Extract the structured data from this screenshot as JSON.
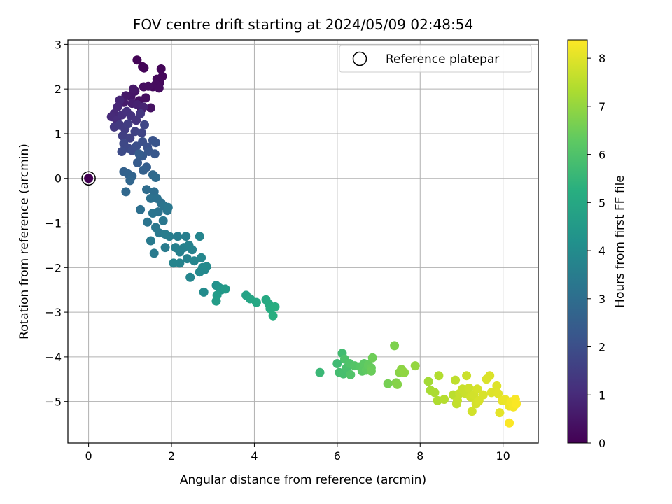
{
  "chart_data": {
    "type": "scatter",
    "title": "FOV centre drift starting at 2024/05/09 02:48:54",
    "xlabel": "Angular distance from reference (arcmin)",
    "ylabel": "Rotation from reference (arcmin)",
    "xlim": [
      -0.5,
      10.85
    ],
    "ylim": [
      -5.93,
      3.1
    ],
    "xticks": [
      0,
      2,
      4,
      6,
      8,
      10
    ],
    "yticks": [
      -5,
      -4,
      -3,
      -2,
      -1,
      0,
      1,
      2,
      3
    ],
    "grid": true,
    "legend": {
      "position": "top-right",
      "entries": [
        "Reference platepar"
      ]
    },
    "colorbar": {
      "label": "Hours from first FF file",
      "colormap": "viridis",
      "range": [
        0,
        8.38
      ],
      "ticks": [
        0,
        1,
        2,
        3,
        4,
        5,
        6,
        7,
        8
      ]
    },
    "reference_point": {
      "x": 0,
      "y": 0,
      "c": 0
    },
    "points": [
      [
        1.17,
        2.65,
        0.06
      ],
      [
        1.3,
        2.5,
        0.08
      ],
      [
        1.34,
        2.47,
        0.1
      ],
      [
        1.75,
        2.45,
        0.12
      ],
      [
        1.78,
        2.28,
        0.15
      ],
      [
        1.65,
        2.22,
        0.18
      ],
      [
        1.72,
        2.14,
        0.2
      ],
      [
        1.55,
        2.05,
        0.22
      ],
      [
        1.62,
        2.1,
        0.25
      ],
      [
        1.7,
        2.02,
        0.27
      ],
      [
        1.33,
        2.05,
        0.29
      ],
      [
        1.44,
        2.06,
        0.3
      ],
      [
        1.38,
        1.8,
        0.33
      ],
      [
        1.22,
        1.74,
        0.35
      ],
      [
        1.28,
        1.55,
        0.38
      ],
      [
        1.5,
        1.58,
        0.4
      ],
      [
        1.12,
        1.95,
        0.45
      ],
      [
        1.02,
        1.83,
        0.5
      ],
      [
        1.08,
        2.0,
        0.55
      ],
      [
        0.9,
        1.85,
        0.6
      ],
      [
        0.85,
        1.7,
        0.65
      ],
      [
        1.05,
        1.68,
        0.7
      ],
      [
        1.18,
        1.65,
        0.75
      ],
      [
        1.32,
        1.6,
        0.8
      ],
      [
        0.75,
        1.75,
        0.85
      ],
      [
        0.7,
        1.6,
        0.9
      ],
      [
        0.62,
        1.45,
        0.95
      ],
      [
        0.55,
        1.38,
        1.0
      ],
      [
        0.68,
        1.3,
        1.05
      ],
      [
        0.8,
        1.42,
        1.1
      ],
      [
        0.92,
        1.5,
        1.15
      ],
      [
        1.02,
        1.4,
        1.2
      ],
      [
        1.15,
        1.3,
        1.25
      ],
      [
        1.25,
        1.45,
        1.3
      ],
      [
        0.62,
        1.15,
        1.35
      ],
      [
        0.75,
        1.2,
        1.4
      ],
      [
        0.88,
        1.1,
        1.45
      ],
      [
        0.95,
        1.22,
        1.5
      ],
      [
        0.82,
        0.95,
        1.55
      ],
      [
        1.0,
        0.9,
        1.6
      ],
      [
        1.12,
        1.05,
        1.65
      ],
      [
        1.28,
        1.02,
        1.7
      ],
      [
        1.35,
        1.2,
        1.75
      ],
      [
        0.85,
        0.78,
        1.8
      ],
      [
        0.95,
        0.68,
        1.85
      ],
      [
        0.8,
        0.6,
        1.9
      ],
      [
        1.05,
        0.62,
        1.95
      ],
      [
        1.15,
        0.72,
        2.0
      ],
      [
        1.3,
        0.82,
        2.05
      ],
      [
        1.42,
        0.7,
        2.1
      ],
      [
        1.55,
        0.85,
        2.15
      ],
      [
        1.62,
        0.8,
        2.2
      ],
      [
        1.45,
        0.6,
        2.25
      ],
      [
        1.6,
        0.55,
        2.3
      ],
      [
        1.3,
        0.5,
        2.35
      ],
      [
        1.18,
        0.35,
        2.4
      ],
      [
        1.22,
        0.55,
        2.45
      ],
      [
        1.4,
        0.25,
        2.5
      ],
      [
        1.32,
        0.18,
        2.55
      ],
      [
        0.85,
        0.15,
        2.6
      ],
      [
        0.95,
        0.1,
        2.65
      ],
      [
        1.05,
        0.05,
        2.7
      ],
      [
        1.0,
        -0.05,
        2.75
      ],
      [
        0.9,
        -0.3,
        2.8
      ],
      [
        1.55,
        0.08,
        2.85
      ],
      [
        1.62,
        0.02,
        2.9
      ],
      [
        1.4,
        -0.25,
        2.95
      ],
      [
        1.58,
        -0.3,
        3.0
      ],
      [
        1.25,
        -0.7,
        3.05
      ],
      [
        1.5,
        -0.45,
        3.1
      ],
      [
        1.65,
        -0.45,
        3.12
      ],
      [
        1.75,
        -0.55,
        3.15
      ],
      [
        1.68,
        -0.75,
        3.18
      ],
      [
        1.55,
        -0.78,
        3.2
      ],
      [
        1.42,
        -0.98,
        3.22
      ],
      [
        1.82,
        -0.62,
        3.25
      ],
      [
        1.9,
        -0.72,
        3.28
      ],
      [
        1.92,
        -0.65,
        3.3
      ],
      [
        1.8,
        -0.95,
        3.32
      ],
      [
        1.62,
        -1.1,
        3.35
      ],
      [
        1.7,
        -1.22,
        3.38
      ],
      [
        1.5,
        -1.4,
        3.4
      ],
      [
        1.58,
        -1.68,
        3.42
      ],
      [
        1.85,
        -1.55,
        3.45
      ],
      [
        1.85,
        -1.25,
        3.48
      ],
      [
        1.95,
        -1.3,
        3.5
      ],
      [
        2.15,
        -1.3,
        3.52
      ],
      [
        2.35,
        -1.3,
        3.55
      ],
      [
        2.1,
        -1.55,
        3.58
      ],
      [
        2.2,
        -1.65,
        3.6
      ],
      [
        2.3,
        -1.55,
        3.62
      ],
      [
        2.42,
        -1.5,
        3.65
      ],
      [
        2.5,
        -1.6,
        3.68
      ],
      [
        2.38,
        -1.8,
        3.7
      ],
      [
        2.2,
        -1.9,
        3.72
      ],
      [
        2.05,
        -1.9,
        3.75
      ],
      [
        2.55,
        -1.85,
        3.78
      ],
      [
        2.68,
        -1.3,
        3.8
      ],
      [
        2.45,
        -2.22,
        3.82
      ],
      [
        2.72,
        -1.78,
        3.85
      ],
      [
        2.75,
        -2.0,
        3.88
      ],
      [
        2.8,
        -2.05,
        3.9
      ],
      [
        2.68,
        -2.1,
        3.92
      ],
      [
        2.85,
        -1.98,
        3.95
      ],
      [
        2.78,
        -2.55,
        4.0
      ],
      [
        3.08,
        -2.4,
        4.2
      ],
      [
        3.15,
        -2.45,
        4.3
      ],
      [
        3.2,
        -2.5,
        4.4
      ],
      [
        3.3,
        -2.48,
        4.5
      ],
      [
        3.1,
        -2.62,
        4.55
      ],
      [
        3.08,
        -2.75,
        4.6
      ],
      [
        3.8,
        -2.62,
        4.8
      ],
      [
        3.9,
        -2.7,
        4.9
      ],
      [
        4.05,
        -2.78,
        5.0
      ],
      [
        4.28,
        -2.72,
        5.05
      ],
      [
        4.35,
        -2.82,
        5.1
      ],
      [
        4.38,
        -2.92,
        5.15
      ],
      [
        4.5,
        -2.88,
        5.2
      ],
      [
        4.45,
        -3.08,
        5.25
      ],
      [
        5.58,
        -4.35,
        5.6
      ],
      [
        6.0,
        -4.15,
        5.7
      ],
      [
        6.12,
        -3.92,
        5.75
      ],
      [
        6.05,
        -4.35,
        5.8
      ],
      [
        6.15,
        -4.38,
        5.85
      ],
      [
        6.22,
        -4.25,
        5.9
      ],
      [
        6.18,
        -4.05,
        5.95
      ],
      [
        6.3,
        -4.15,
        6.0
      ],
      [
        6.32,
        -4.4,
        6.05
      ],
      [
        6.42,
        -4.2,
        6.1
      ],
      [
        6.55,
        -4.22,
        6.15
      ],
      [
        6.6,
        -4.32,
        6.2
      ],
      [
        6.65,
        -4.15,
        6.25
      ],
      [
        6.7,
        -4.3,
        6.3
      ],
      [
        6.75,
        -4.18,
        6.35
      ],
      [
        6.82,
        -4.25,
        6.4
      ],
      [
        6.82,
        -4.32,
        6.45
      ],
      [
        6.85,
        -4.02,
        6.5
      ],
      [
        7.22,
        -4.6,
        6.6
      ],
      [
        7.38,
        -3.75,
        6.7
      ],
      [
        7.42,
        -4.58,
        6.75
      ],
      [
        7.45,
        -4.62,
        6.8
      ],
      [
        7.5,
        -4.35,
        6.85
      ],
      [
        7.55,
        -4.28,
        6.9
      ],
      [
        7.62,
        -4.35,
        6.95
      ],
      [
        7.88,
        -4.2,
        7.0
      ],
      [
        8.2,
        -4.55,
        7.2
      ],
      [
        8.25,
        -4.75,
        7.25
      ],
      [
        8.35,
        -4.8,
        7.3
      ],
      [
        8.42,
        -4.98,
        7.35
      ],
      [
        8.45,
        -4.42,
        7.4
      ],
      [
        8.58,
        -4.95,
        7.45
      ],
      [
        8.8,
        -4.85,
        7.5
      ],
      [
        8.85,
        -4.52,
        7.55
      ],
      [
        8.88,
        -5.05,
        7.6
      ],
      [
        8.9,
        -4.98,
        7.62
      ],
      [
        8.95,
        -4.82,
        7.65
      ],
      [
        9.02,
        -4.72,
        7.68
      ],
      [
        9.1,
        -4.82,
        7.7
      ],
      [
        9.12,
        -4.42,
        7.72
      ],
      [
        9.18,
        -4.7,
        7.75
      ],
      [
        9.22,
        -4.9,
        7.78
      ],
      [
        9.25,
        -5.22,
        7.8
      ],
      [
        9.3,
        -4.85,
        7.82
      ],
      [
        9.35,
        -5.05,
        7.84
      ],
      [
        9.38,
        -4.72,
        7.86
      ],
      [
        9.42,
        -4.98,
        7.88
      ],
      [
        9.52,
        -4.85,
        7.9
      ],
      [
        9.6,
        -4.5,
        7.92
      ],
      [
        9.68,
        -4.42,
        7.94
      ],
      [
        9.72,
        -4.8,
        7.96
      ],
      [
        9.85,
        -4.65,
        7.98
      ],
      [
        9.88,
        -4.82,
        8.0
      ],
      [
        9.92,
        -5.25,
        8.05
      ],
      [
        9.98,
        -4.98,
        8.1
      ],
      [
        10.05,
        -4.95,
        8.15
      ],
      [
        10.15,
        -5.1,
        8.2
      ],
      [
        10.2,
        -5.0,
        8.25
      ],
      [
        10.25,
        -5.12,
        8.28
      ],
      [
        10.3,
        -4.95,
        8.32
      ],
      [
        10.32,
        -5.05,
        8.34
      ],
      [
        10.15,
        -5.48,
        8.36
      ]
    ]
  }
}
